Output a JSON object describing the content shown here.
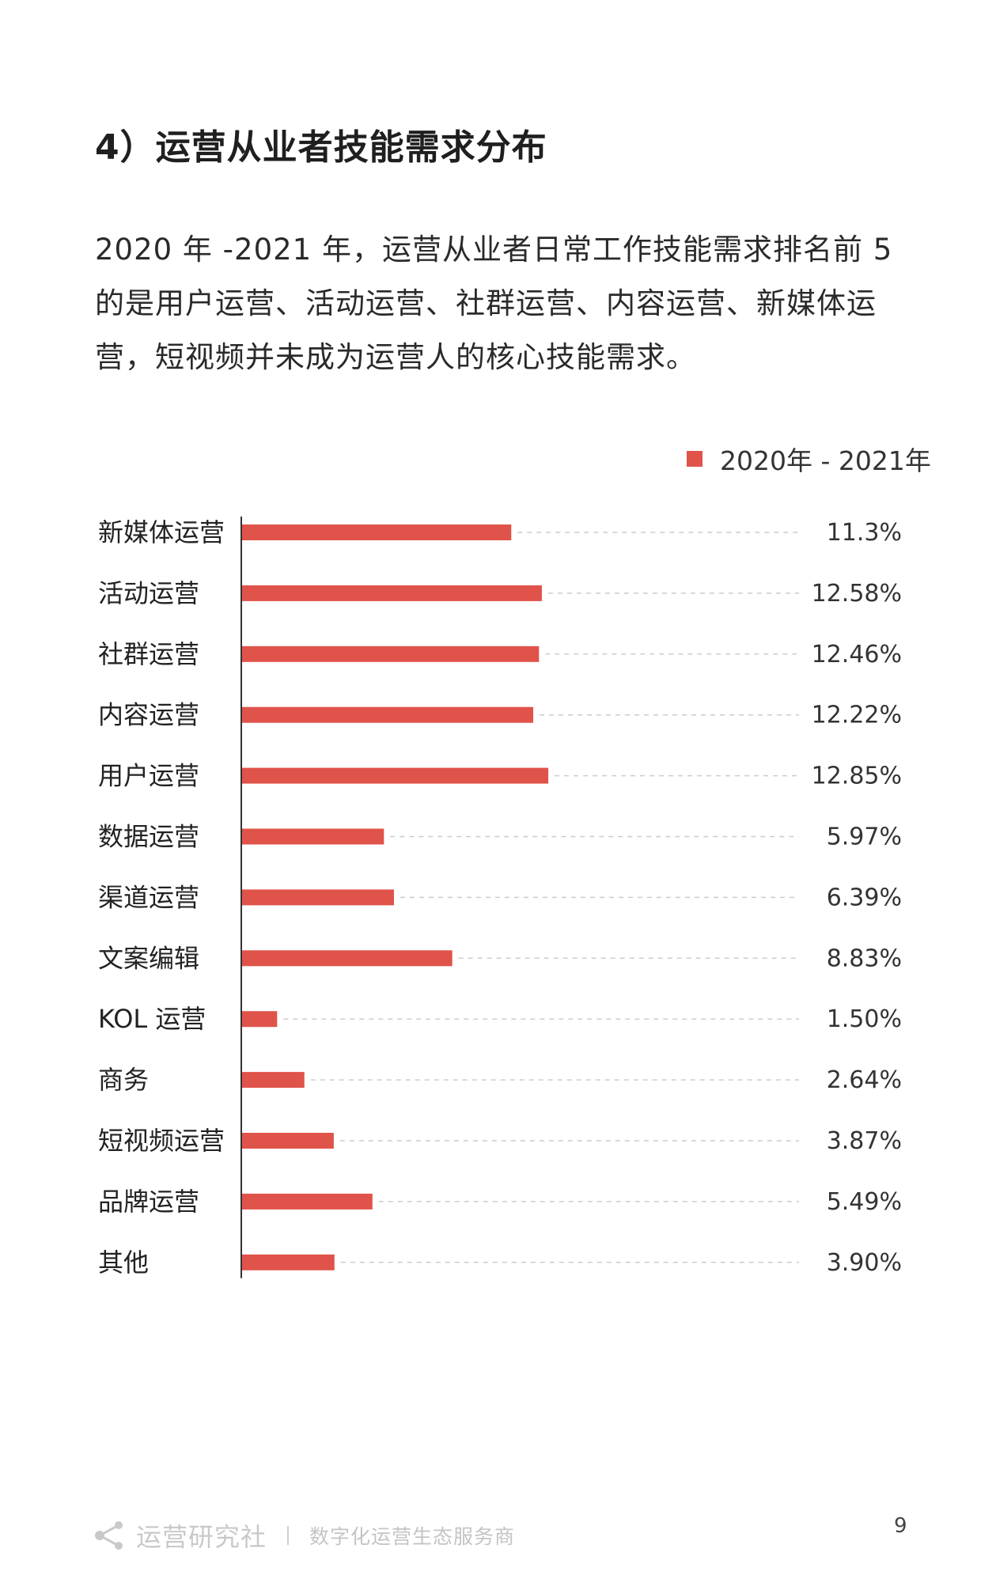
{
  "heading": "4）运营从业者技能需求分布",
  "paragraph": "2020 年 -2021 年，运营从业者日常工作技能需求排名前 5 的是用户运营、活动运营、社群运营、内容运营、新媒体运营，短视频并未成为运营人的核心技能需求。",
  "colors": {
    "bar": "#e0534a",
    "gridline": "#cccccc",
    "axis": "#333333"
  },
  "chart_data": {
    "type": "bar",
    "orientation": "horizontal",
    "categories": [
      "新媒体运营",
      "活动运营",
      "社群运营",
      "内容运营",
      "用户运营",
      "数据运营",
      "渠道运营",
      "文案编辑",
      "KOL 运营",
      "商务",
      "短视频运营",
      "品牌运营",
      "其他"
    ],
    "series": [
      {
        "name": "2020年 - 2021年",
        "values": [
          11.3,
          12.58,
          12.46,
          12.22,
          12.85,
          5.97,
          6.39,
          8.83,
          1.5,
          2.64,
          3.87,
          5.49,
          3.9
        ],
        "labels": [
          "11.3%",
          "12.58%",
          "12.46%",
          "12.22%",
          "12.85%",
          "5.97%",
          "6.39%",
          "8.83%",
          "1.50%",
          "2.64%",
          "3.87%",
          "5.49%",
          "3.90%"
        ]
      }
    ],
    "legend": "top-right",
    "grid": "dashed guide per bar"
  },
  "footer": {
    "brand": "运营研究社",
    "tagline": "数字化运营生态服务商",
    "page_number": "9",
    "logo_icon": "share-nodes-icon"
  }
}
